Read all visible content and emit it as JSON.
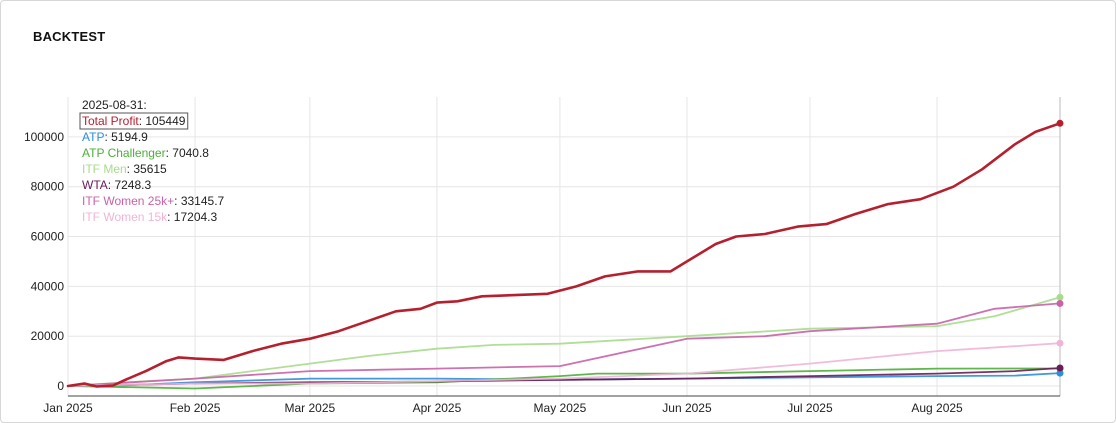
{
  "title": "BACKTEST",
  "chart_data": {
    "type": "line",
    "title": "BACKTEST",
    "xlabel": "",
    "ylabel": "",
    "x_range": [
      "2025-01-01",
      "2025-08-31"
    ],
    "ylim": [
      -4000,
      116000
    ],
    "y_ticks": [
      0,
      20000,
      40000,
      60000,
      80000,
      100000
    ],
    "y_tick_labels": [
      "0",
      "20000",
      "40000",
      "60000",
      "80000",
      "100000"
    ],
    "x_ticks": [
      "2025-01-01",
      "2025-02-01",
      "2025-03-01",
      "2025-04-01",
      "2025-05-01",
      "2025-06-01",
      "2025-07-01",
      "2025-08-01"
    ],
    "x_tick_labels": [
      "Jan 2025",
      "Feb 2025",
      "Mar 2025",
      "Apr 2025",
      "May 2025",
      "Jun 2025",
      "Jul 2025",
      "Aug 2025"
    ],
    "grid": true,
    "hover": {
      "date_label": "2025-08-31:"
    },
    "series": [
      {
        "name": "Total Profit",
        "color": "#b5202e",
        "last_value": "105449",
        "highlight": true,
        "points": [
          [
            "2025-01-01",
            0
          ],
          [
            "2025-01-05",
            1000
          ],
          [
            "2025-01-08",
            -200
          ],
          [
            "2025-01-12",
            200
          ],
          [
            "2025-01-15",
            2500
          ],
          [
            "2025-01-20",
            6000
          ],
          [
            "2025-01-25",
            10000
          ],
          [
            "2025-01-28",
            11500
          ],
          [
            "2025-02-01",
            11000
          ],
          [
            "2025-02-08",
            10500
          ],
          [
            "2025-02-15",
            14000
          ],
          [
            "2025-02-22",
            17000
          ],
          [
            "2025-03-01",
            19000
          ],
          [
            "2025-03-08",
            22000
          ],
          [
            "2025-03-15",
            26000
          ],
          [
            "2025-03-22",
            30000
          ],
          [
            "2025-03-28",
            31000
          ],
          [
            "2025-04-01",
            33500
          ],
          [
            "2025-04-06",
            34000
          ],
          [
            "2025-04-12",
            36000
          ],
          [
            "2025-04-20",
            36500
          ],
          [
            "2025-04-28",
            37000
          ],
          [
            "2025-05-05",
            40000
          ],
          [
            "2025-05-12",
            44000
          ],
          [
            "2025-05-20",
            46000
          ],
          [
            "2025-05-28",
            46000
          ],
          [
            "2025-06-01",
            50000
          ],
          [
            "2025-06-08",
            57000
          ],
          [
            "2025-06-13",
            60000
          ],
          [
            "2025-06-20",
            61000
          ],
          [
            "2025-06-28",
            64000
          ],
          [
            "2025-07-05",
            65000
          ],
          [
            "2025-07-12",
            69000
          ],
          [
            "2025-07-20",
            73000
          ],
          [
            "2025-07-28",
            75000
          ],
          [
            "2025-08-05",
            80000
          ],
          [
            "2025-08-12",
            87000
          ],
          [
            "2025-08-20",
            97000
          ],
          [
            "2025-08-25",
            102000
          ],
          [
            "2025-08-31",
            105449
          ]
        ]
      },
      {
        "name": "ATP",
        "color": "#2e8fd6",
        "last_value": "5194.9",
        "highlight": false,
        "points": [
          [
            "2025-01-01",
            0
          ],
          [
            "2025-01-15",
            300
          ],
          [
            "2025-02-01",
            1500
          ],
          [
            "2025-03-01",
            3000
          ],
          [
            "2025-04-01",
            3000
          ],
          [
            "2025-05-01",
            2500
          ],
          [
            "2025-06-01",
            3000
          ],
          [
            "2025-07-01",
            3500
          ],
          [
            "2025-08-01",
            4000
          ],
          [
            "2025-08-20",
            4200
          ],
          [
            "2025-08-31",
            5194.9
          ]
        ]
      },
      {
        "name": "ATP Challenger",
        "color": "#4caf3a",
        "last_value": "7040.8",
        "highlight": false,
        "points": [
          [
            "2025-01-01",
            0
          ],
          [
            "2025-02-01",
            -1000
          ],
          [
            "2025-03-01",
            1000
          ],
          [
            "2025-04-01",
            1500
          ],
          [
            "2025-05-01",
            4000
          ],
          [
            "2025-05-10",
            5000
          ],
          [
            "2025-06-01",
            5000
          ],
          [
            "2025-07-01",
            6000
          ],
          [
            "2025-08-01",
            7000
          ],
          [
            "2025-08-31",
            7040.8
          ]
        ]
      },
      {
        "name": "ITF Men",
        "color": "#a7dc8c",
        "last_value": "35615",
        "highlight": false,
        "points": [
          [
            "2025-01-01",
            0
          ],
          [
            "2025-01-20",
            2000
          ],
          [
            "2025-02-01",
            3000
          ],
          [
            "2025-03-01",
            9000
          ],
          [
            "2025-03-15",
            12000
          ],
          [
            "2025-04-01",
            15000
          ],
          [
            "2025-04-15",
            16500
          ],
          [
            "2025-05-01",
            17000
          ],
          [
            "2025-06-01",
            20000
          ],
          [
            "2025-07-01",
            23000
          ],
          [
            "2025-08-01",
            24000
          ],
          [
            "2025-08-15",
            28000
          ],
          [
            "2025-08-31",
            35615
          ]
        ]
      },
      {
        "name": "WTA",
        "color": "#6b1b5a",
        "last_value": "7248.3",
        "highlight": false,
        "points": [
          [
            "2025-01-01",
            0
          ],
          [
            "2025-02-01",
            1000
          ],
          [
            "2025-03-01",
            1500
          ],
          [
            "2025-04-01",
            1800
          ],
          [
            "2025-05-01",
            2500
          ],
          [
            "2025-06-01",
            3000
          ],
          [
            "2025-07-01",
            4000
          ],
          [
            "2025-08-01",
            5000
          ],
          [
            "2025-08-20",
            6000
          ],
          [
            "2025-08-31",
            7248.3
          ]
        ]
      },
      {
        "name": "ITF Women 25k+",
        "color": "#c763a8",
        "last_value": "33145.7",
        "highlight": false,
        "points": [
          [
            "2025-01-01",
            0
          ],
          [
            "2025-02-01",
            3000
          ],
          [
            "2025-03-01",
            6000
          ],
          [
            "2025-04-01",
            7000
          ],
          [
            "2025-05-01",
            8000
          ],
          [
            "2025-06-01",
            19000
          ],
          [
            "2025-06-20",
            20000
          ],
          [
            "2025-07-01",
            22000
          ],
          [
            "2025-08-01",
            25000
          ],
          [
            "2025-08-15",
            31000
          ],
          [
            "2025-08-31",
            33145.7
          ]
        ]
      },
      {
        "name": "ITF Women 15k",
        "color": "#f0b5d6",
        "last_value": "17204.3",
        "highlight": false,
        "points": [
          [
            "2025-01-01",
            0
          ],
          [
            "2025-02-01",
            1000
          ],
          [
            "2025-03-01",
            1000
          ],
          [
            "2025-04-01",
            2000
          ],
          [
            "2025-05-01",
            3000
          ],
          [
            "2025-06-01",
            5000
          ],
          [
            "2025-07-01",
            9000
          ],
          [
            "2025-08-01",
            14000
          ],
          [
            "2025-08-20",
            16000
          ],
          [
            "2025-08-31",
            17204.3
          ]
        ]
      }
    ]
  }
}
